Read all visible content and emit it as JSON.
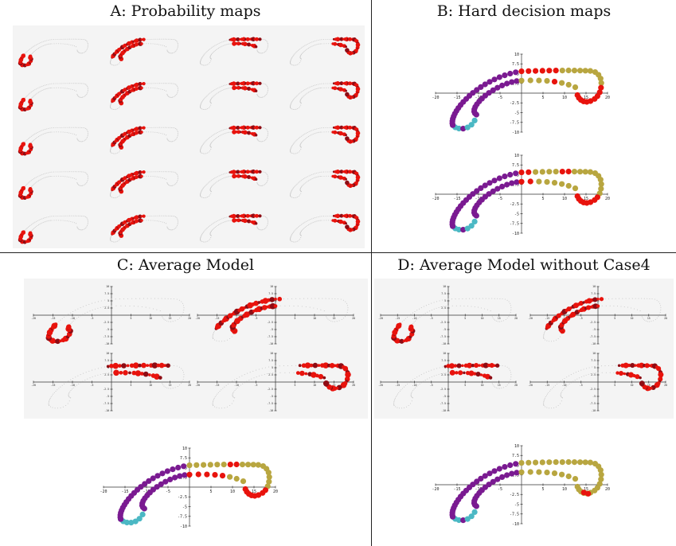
{
  "panels": {
    "a_title": "A: Probability maps",
    "b_title": "B: Hard decision maps",
    "c_title": "C: Average Model",
    "d_title": "D: Average Model without Case4"
  },
  "colors": {
    "red": "#e8130d",
    "dark_red": "#8e0c14",
    "purple": "#7a1a91",
    "olive": "#b8a640",
    "cyan": "#4bb8c4",
    "faint": "#c9c9c9",
    "panel_bg": "#f4f4f4"
  },
  "probability_grid": {
    "rows": 5,
    "columns": 4,
    "highlighted_regions": [
      "posterior-tip",
      "inner-arc",
      "outer-arc-front",
      "outer-arc-back"
    ]
  },
  "axis_ticks": {
    "x": [
      "-20",
      "-15",
      "-10",
      "-5",
      "5",
      "10",
      "15",
      "20"
    ],
    "y": [
      "10",
      "7.5",
      "5",
      "2.5",
      "-2.5",
      "-5",
      "-7.5",
      "-10"
    ]
  },
  "chart_data": {
    "type": "scatter",
    "xlim": [
      -20,
      20
    ],
    "ylim": [
      -10,
      10
    ],
    "regions": [
      {
        "color": "cyan",
        "description": "posterior tip"
      },
      {
        "color": "purple",
        "description": "arc body"
      },
      {
        "color": "red",
        "description": "transition"
      },
      {
        "color": "olive",
        "description": "anterior arm"
      }
    ]
  }
}
